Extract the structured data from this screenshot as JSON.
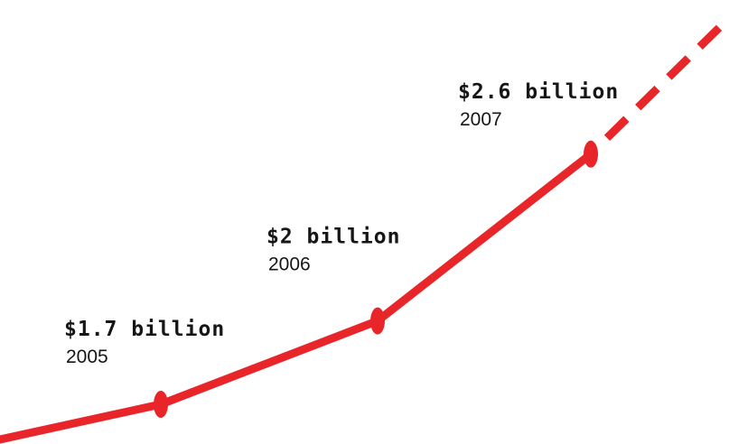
{
  "chart_data": {
    "type": "line",
    "title": "",
    "xlabel": "",
    "ylabel": "",
    "x": [
      "2005",
      "2006",
      "2007"
    ],
    "series": [
      {
        "values": [
          1.7,
          2.0,
          2.6
        ],
        "labels": [
          "$1.7 billion",
          "$2 billion",
          "$2.6 billion"
        ]
      }
    ],
    "projection": "dashed continuation upward after 2007",
    "grid": false,
    "legend": "none",
    "colors": {
      "line": "#e8262a",
      "text": "#161616",
      "background": "#ffffff"
    }
  }
}
